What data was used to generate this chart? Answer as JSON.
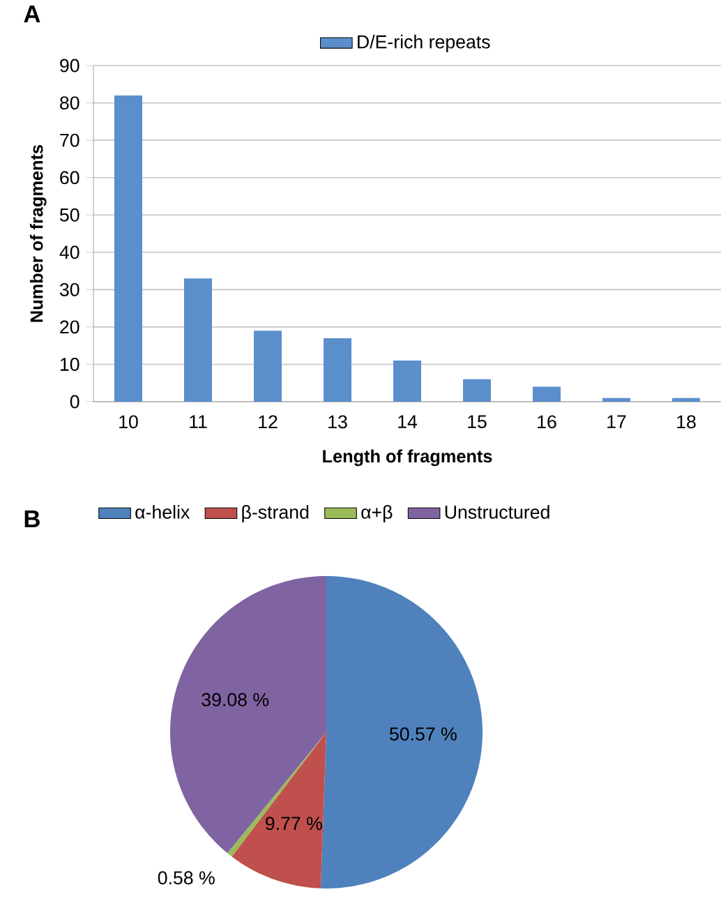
{
  "chart_data": [
    {
      "type": "bar",
      "title": "A",
      "xlabel": "Length of fragments",
      "ylabel": "Number of fragments",
      "categories": [
        "10",
        "11",
        "12",
        "13",
        "14",
        "15",
        "16",
        "17",
        "18"
      ],
      "series": [
        {
          "name": "D/E-rich repeats",
          "color": "#5b8fcc",
          "values": [
            82,
            33,
            19,
            17,
            11,
            6,
            4,
            1,
            1
          ]
        }
      ],
      "ylim": [
        0,
        90
      ],
      "yticks": [
        0,
        10,
        20,
        30,
        40,
        50,
        60,
        70,
        80,
        90
      ],
      "grid": "y",
      "legend": "top"
    },
    {
      "type": "pie",
      "title": "B",
      "categories": [
        "α-helix",
        "β-strand",
        "α+β",
        "Unstructured"
      ],
      "values": [
        50.57,
        9.77,
        0.58,
        39.08
      ],
      "colors": [
        "#4f81bd",
        "#c0504d",
        "#9bbb59",
        "#8064a2"
      ],
      "value_labels": [
        "50.57 %",
        "9.77 %",
        "0.58 %",
        "39.08 %"
      ],
      "legend": "top"
    }
  ]
}
